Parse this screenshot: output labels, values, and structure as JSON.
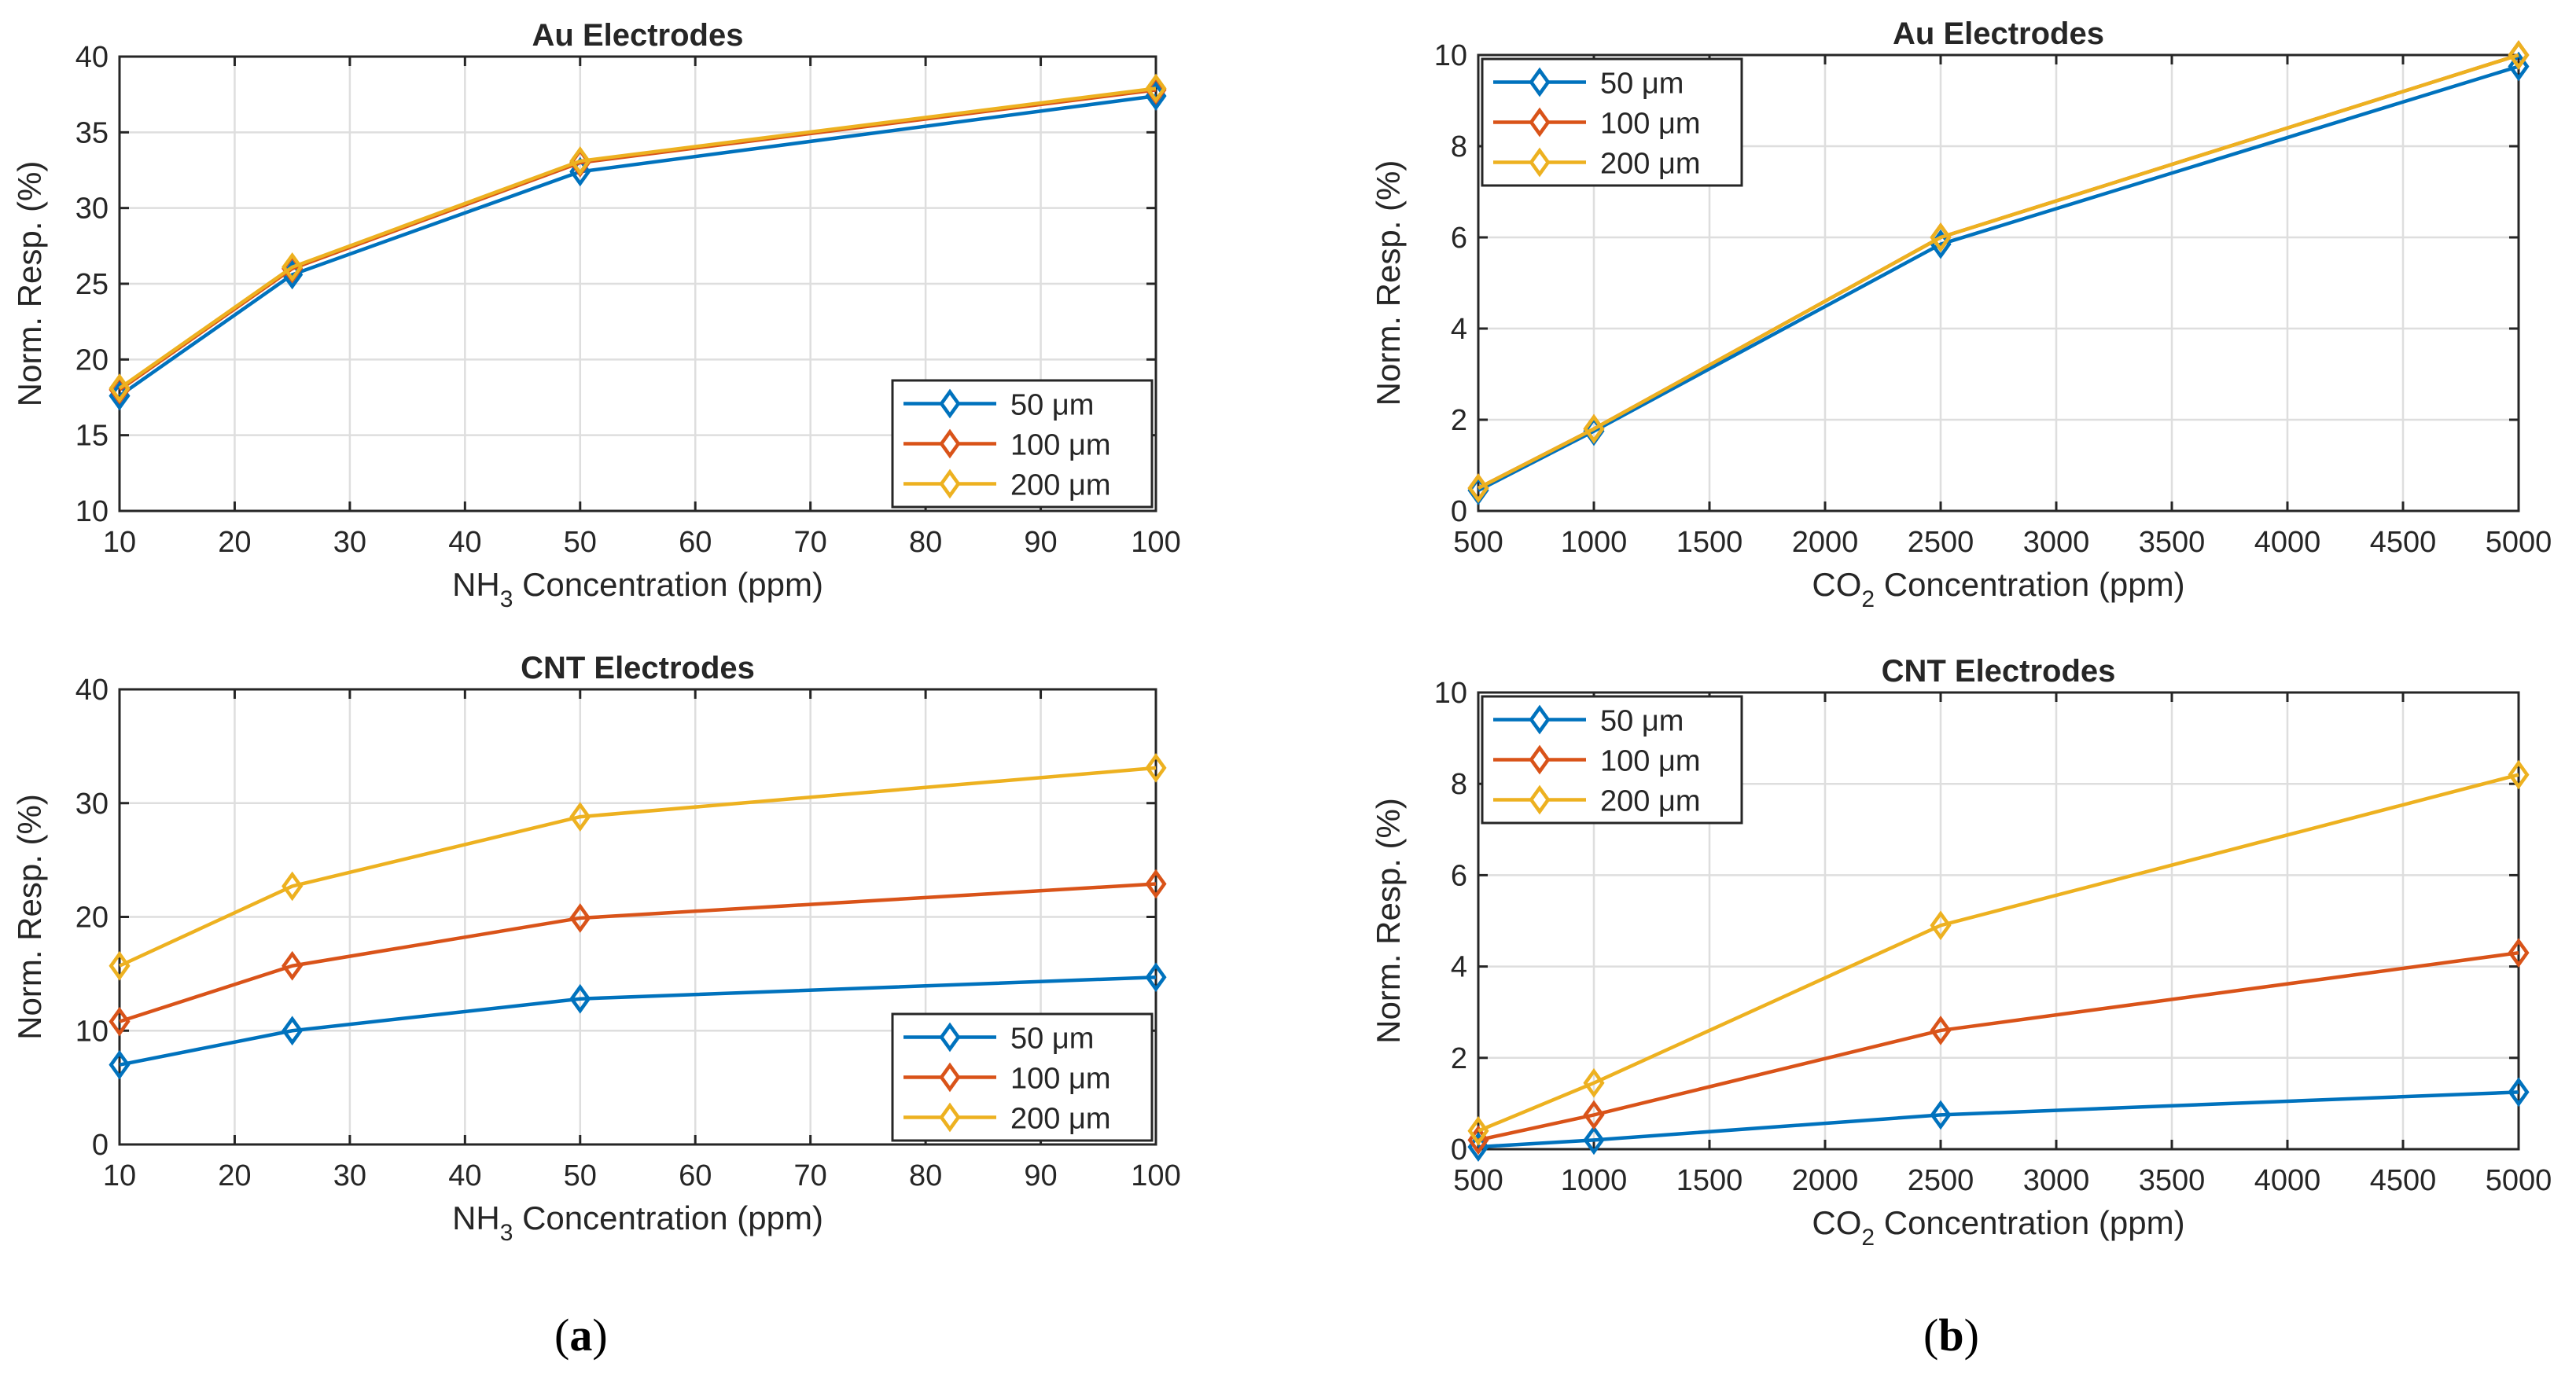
{
  "captions": {
    "a": "a",
    "b": "b"
  },
  "chart_data": [
    {
      "type": "line",
      "title": "Au Electrodes",
      "xlabel_pre": "NH",
      "xlabel_sub": "3",
      "xlabel_post": " Concentration (ppm)",
      "ylabel": "Norm. Resp. (%)",
      "xlim": [
        10,
        100
      ],
      "ylim": [
        10,
        40
      ],
      "xticks": [
        10,
        20,
        30,
        40,
        50,
        60,
        70,
        80,
        90,
        100
      ],
      "yticks": [
        10,
        15,
        20,
        25,
        30,
        35,
        40
      ],
      "x": [
        10,
        25,
        50,
        100
      ],
      "legend_position": "bottom-right",
      "series": [
        {
          "name": "50 μm",
          "color": "#0072BD",
          "values": [
            17.6,
            25.6,
            32.4,
            37.4
          ]
        },
        {
          "name": "100 μm",
          "color": "#D95319",
          "values": [
            18.0,
            26.0,
            33.0,
            37.8
          ]
        },
        {
          "name": "200 μm",
          "color": "#EDB120",
          "values": [
            18.1,
            26.1,
            33.1,
            37.9
          ]
        }
      ]
    },
    {
      "type": "line",
      "title": "Au Electrodes",
      "xlabel_pre": "CO",
      "xlabel_sub": "2",
      "xlabel_post": " Concentration (ppm)",
      "ylabel": "Norm. Resp. (%)",
      "xlim": [
        500,
        5000
      ],
      "ylim": [
        0,
        10
      ],
      "xticks": [
        500,
        1000,
        1500,
        2000,
        2500,
        3000,
        3500,
        4000,
        4500,
        5000
      ],
      "yticks": [
        0,
        2,
        4,
        6,
        8,
        10
      ],
      "x": [
        500,
        1000,
        2500,
        5000
      ],
      "legend_position": "top-left",
      "series": [
        {
          "name": "50 μm",
          "color": "#0072BD",
          "values": [
            0.45,
            1.75,
            5.85,
            9.75
          ]
        },
        {
          "name": "100 μm",
          "color": "#D95319",
          "values": [
            0.5,
            1.8,
            6.0,
            10.0
          ]
        },
        {
          "name": "200 μm",
          "color": "#EDB120",
          "values": [
            0.5,
            1.8,
            6.0,
            10.0
          ]
        }
      ]
    },
    {
      "type": "line",
      "title": "CNT Electrodes",
      "xlabel_pre": "NH",
      "xlabel_sub": "3",
      "xlabel_post": " Concentration (ppm)",
      "ylabel": "Norm. Resp. (%)",
      "xlim": [
        10,
        100
      ],
      "ylim": [
        0,
        40
      ],
      "xticks": [
        10,
        20,
        30,
        40,
        50,
        60,
        70,
        80,
        90,
        100
      ],
      "yticks": [
        0,
        10,
        20,
        30,
        40
      ],
      "x": [
        10,
        25,
        50,
        100
      ],
      "legend_position": "bottom-right",
      "series": [
        {
          "name": "50 μm",
          "color": "#0072BD",
          "values": [
            7.0,
            10.0,
            12.8,
            14.7
          ]
        },
        {
          "name": "100 μm",
          "color": "#D95319",
          "values": [
            10.8,
            15.7,
            19.9,
            22.9
          ]
        },
        {
          "name": "200 μm",
          "color": "#EDB120",
          "values": [
            15.7,
            22.7,
            28.8,
            33.1
          ]
        }
      ]
    },
    {
      "type": "line",
      "title": "CNT Electrodes",
      "xlabel_pre": "CO",
      "xlabel_sub": "2",
      "xlabel_post": " Concentration (ppm)",
      "ylabel": "Norm. Resp. (%)",
      "xlim": [
        500,
        5000
      ],
      "ylim": [
        0,
        10
      ],
      "xticks": [
        500,
        1000,
        1500,
        2000,
        2500,
        3000,
        3500,
        4000,
        4500,
        5000
      ],
      "yticks": [
        0,
        2,
        4,
        6,
        8,
        10
      ],
      "x": [
        500,
        1000,
        2500,
        5000
      ],
      "legend_position": "top-left",
      "series": [
        {
          "name": "50 μm",
          "color": "#0072BD",
          "values": [
            0.05,
            0.2,
            0.75,
            1.25
          ]
        },
        {
          "name": "100 μm",
          "color": "#D95319",
          "values": [
            0.2,
            0.75,
            2.6,
            4.3
          ]
        },
        {
          "name": "200 μm",
          "color": "#EDB120",
          "values": [
            0.4,
            1.45,
            4.9,
            8.2
          ]
        }
      ]
    }
  ]
}
